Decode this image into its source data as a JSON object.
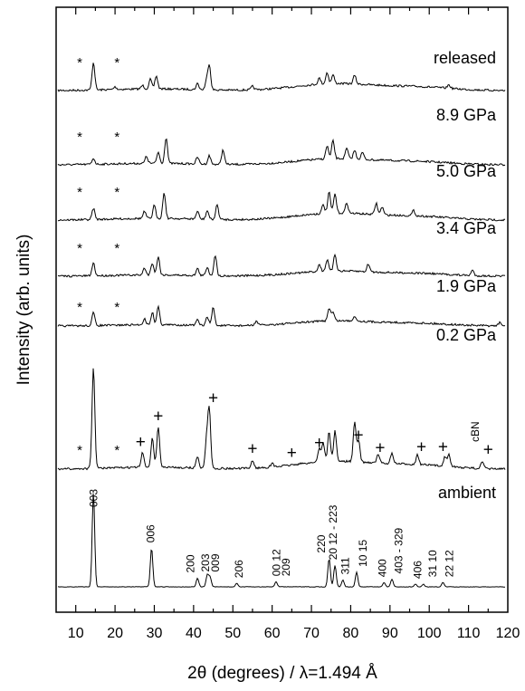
{
  "chart_data": {
    "type": "line",
    "xlabel_main": "2θ (degrees) / λ=1.494 Å",
    "ylabel": "Intensity (arb. units)",
    "xlim": [
      5,
      120
    ],
    "x_ticks": [
      10,
      20,
      30,
      40,
      50,
      60,
      70,
      80,
      90,
      100,
      110,
      120
    ],
    "grid": false,
    "series": [
      {
        "name": "released",
        "baseline": 0.8,
        "peaks": [
          [
            14.5,
            3.2
          ],
          [
            20,
            0.3
          ],
          [
            27,
            0.4
          ],
          [
            29,
            1.1
          ],
          [
            30.5,
            1.5
          ],
          [
            41,
            0.7
          ],
          [
            43.3,
            1.0
          ],
          [
            44,
            2.9
          ],
          [
            55,
            0.4
          ],
          [
            72,
            0.7
          ],
          [
            74,
            1.3
          ],
          [
            75.5,
            1.0
          ],
          [
            81,
            1.0
          ],
          [
            105,
            0.4
          ]
        ],
        "markers": [
          {
            "text": "*",
            "x": 11
          },
          {
            "text": "*",
            "x": 20.5
          }
        ]
      },
      {
        "name": "8.9 GPa",
        "baseline": 0.7,
        "peaks": [
          [
            14.5,
            0.7
          ],
          [
            28,
            0.8
          ],
          [
            31,
            1.3
          ],
          [
            33,
            3.0
          ],
          [
            41,
            0.8
          ],
          [
            44,
            1.0
          ],
          [
            47.5,
            1.7
          ],
          [
            74,
            1.5
          ],
          [
            75.5,
            2.1
          ],
          [
            79,
            1.2
          ],
          [
            81,
            1.0
          ],
          [
            83,
            0.8
          ]
        ],
        "markers": [
          {
            "text": "*",
            "x": 11
          },
          {
            "text": "*",
            "x": 20.5
          }
        ]
      },
      {
        "name": "5.0 GPa",
        "baseline": 0.8,
        "peaks": [
          [
            14.5,
            1.3
          ],
          [
            27.5,
            0.8
          ],
          [
            30,
            1.5
          ],
          [
            32.5,
            3.0
          ],
          [
            41,
            0.9
          ],
          [
            43.5,
            1.0
          ],
          [
            46,
            1.7
          ],
          [
            73,
            1.0
          ],
          [
            74.5,
            2.4
          ],
          [
            76,
            2.2
          ],
          [
            79,
            1.2
          ],
          [
            86.5,
            1.3
          ],
          [
            88,
            0.9
          ],
          [
            96,
            0.6
          ]
        ],
        "markers": [
          {
            "text": "*",
            "x": 11
          },
          {
            "text": "*",
            "x": 20.5
          }
        ]
      },
      {
        "name": "3.4 GPa",
        "baseline": 0.6,
        "peaks": [
          [
            14.5,
            1.5
          ],
          [
            27.5,
            0.8
          ],
          [
            29.5,
            1.4
          ],
          [
            31,
            2.1
          ],
          [
            41,
            0.8
          ],
          [
            43.5,
            1.0
          ],
          [
            45.5,
            2.4
          ],
          [
            72,
            0.8
          ],
          [
            74,
            1.3
          ],
          [
            76,
            1.9
          ],
          [
            84.5,
            0.9
          ],
          [
            111,
            0.6
          ]
        ],
        "markers": [
          {
            "text": "*",
            "x": 11
          },
          {
            "text": "*",
            "x": 20.5
          }
        ]
      },
      {
        "name": "1.9 GPa",
        "baseline": 0.6,
        "peaks": [
          [
            14.5,
            1.5
          ],
          [
            27.5,
            0.7
          ],
          [
            29.5,
            1.4
          ],
          [
            31,
            2.1
          ],
          [
            41,
            0.6
          ],
          [
            43.5,
            1.0
          ],
          [
            45,
            2.1
          ],
          [
            56,
            0.5
          ],
          [
            74.5,
            1.5
          ],
          [
            75.5,
            1.0
          ],
          [
            81,
            0.6
          ],
          [
            118,
            0.4
          ]
        ],
        "markers": [
          {
            "text": "*",
            "x": 11
          },
          {
            "text": "*",
            "x": 20.5
          }
        ]
      },
      {
        "name": "0.2 GPa",
        "baseline": 0.9,
        "peaks": [
          [
            14.5,
            11.7
          ],
          [
            27,
            1.7
          ],
          [
            29.5,
            3.4
          ],
          [
            31,
            4.7
          ],
          [
            41,
            1.3
          ],
          [
            43.3,
            3.2
          ],
          [
            44,
            6.8
          ],
          [
            55,
            0.9
          ],
          [
            60,
            0.4
          ],
          [
            72,
            1.6
          ],
          [
            73,
            2.2
          ],
          [
            74.5,
            3.4
          ],
          [
            76,
            3.5
          ],
          [
            81,
            4.5
          ],
          [
            82,
            2.5
          ],
          [
            87,
            1.0
          ],
          [
            90.5,
            1.2
          ],
          [
            97,
            1.1
          ],
          [
            104,
            1.1
          ],
          [
            105,
            1.5
          ],
          [
            113.5,
            0.8
          ]
        ],
        "markers": [
          {
            "text": "*",
            "x": 11
          },
          {
            "text": "*",
            "x": 20.5
          },
          {
            "text": "+",
            "x": 26.5
          },
          {
            "text": "+",
            "x": 31
          },
          {
            "text": "+",
            "x": 45
          },
          {
            "text": "+",
            "x": 55
          },
          {
            "text": "+",
            "x": 65
          },
          {
            "text": "+",
            "x": 72
          },
          {
            "text": "+",
            "x": 82
          },
          {
            "text": "+",
            "x": 87.5
          },
          {
            "text": "+",
            "x": 98
          },
          {
            "text": "+",
            "x": 103.5
          },
          {
            "text": "+",
            "x": 115
          }
        ],
        "annotation": "cBN"
      },
      {
        "name": "ambient",
        "baseline": 0.0,
        "peaks": [
          [
            14.5,
            11.0
          ],
          [
            29.3,
            4.5
          ],
          [
            41,
            1.0
          ],
          [
            43.5,
            1.4
          ],
          [
            44.2,
            1.1
          ],
          [
            51,
            0.4
          ],
          [
            61,
            0.6
          ],
          [
            74.5,
            3.3
          ],
          [
            76,
            2.5
          ],
          [
            78,
            0.8
          ],
          [
            81.5,
            1.7
          ],
          [
            88.5,
            0.5
          ],
          [
            90.5,
            0.9
          ],
          [
            96.5,
            0.3
          ],
          [
            98.5,
            0.3
          ],
          [
            103.5,
            0.5
          ]
        ]
      }
    ],
    "peak_labels": [
      {
        "text": "003",
        "x": 15.5
      },
      {
        "text": "006",
        "x": 30
      },
      {
        "text": "200",
        "x": 40.2
      },
      {
        "text": "203",
        "x": 44
      },
      {
        "text": "009",
        "x": 46.5
      },
      {
        "text": "206",
        "x": 52.5
      },
      {
        "text": "00 12",
        "x": 62
      },
      {
        "text": "209",
        "x": 64.5
      },
      {
        "text": "220",
        "x": 73.5
      },
      {
        "text": "20 12 - 223",
        "x": 76.5
      },
      {
        "text": "311",
        "x": 79.5
      },
      {
        "text": "10 15",
        "x": 84
      },
      {
        "text": "400",
        "x": 89
      },
      {
        "text": "403 - 329",
        "x": 93.2
      },
      {
        "text": "406",
        "x": 98
      },
      {
        "text": "31 10",
        "x": 101.8
      },
      {
        "text": "22 12",
        "x": 106
      }
    ]
  }
}
